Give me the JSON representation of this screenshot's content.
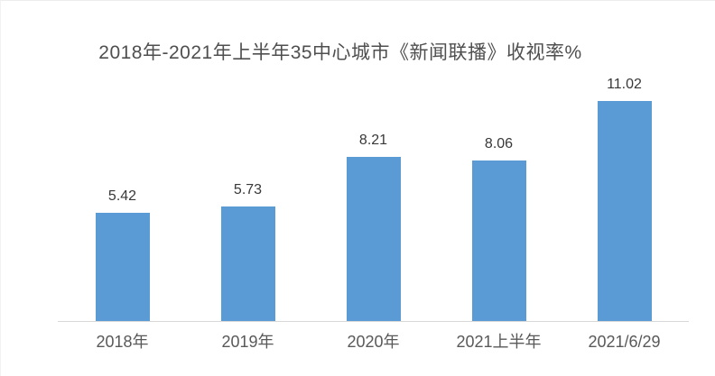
{
  "chart_data": {
    "type": "bar",
    "title": "2018年-2021年上半年35中心城市《新闻联播》收视率%",
    "categories": [
      "2018年",
      "2019年",
      "2020年",
      "2021上半年",
      "2021/6/29"
    ],
    "values": [
      5.42,
      5.73,
      8.21,
      8.06,
      11.02
    ],
    "data_labels": [
      "5.42",
      "5.73",
      "8.21",
      "8.06",
      "11.02"
    ],
    "xlabel": "",
    "ylabel": "",
    "ylim": [
      0,
      11.02
    ],
    "grid": false,
    "legend_position": "none",
    "bar_color": "#5B9BD5",
    "axis_line_color": "#D8D8D8",
    "title_color": "#4F4F4F",
    "value_label_color": "#383838",
    "tick_label_color": "#595959",
    "background_color": "#FFFFFF"
  }
}
